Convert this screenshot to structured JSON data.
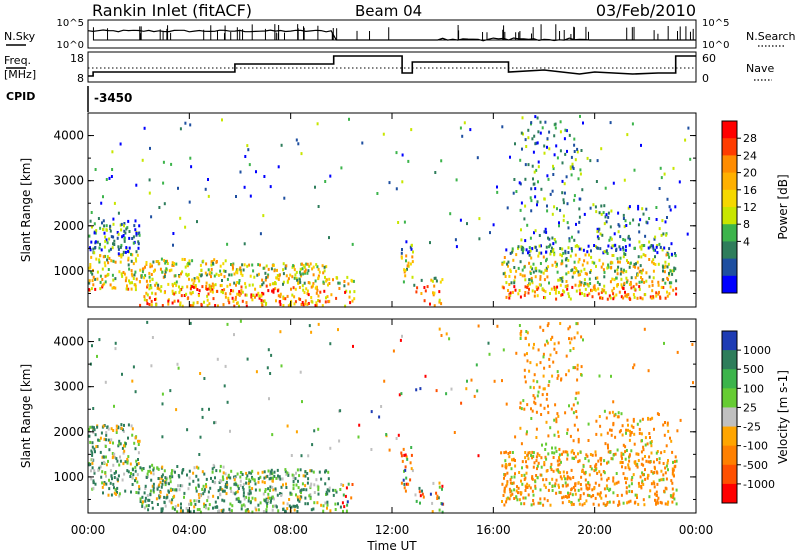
{
  "header": {
    "station": "Rankin Inlet (fitACF)",
    "beam": "Beam 04",
    "date": "03/Feb/2010"
  },
  "sky_panel": {
    "left_label": "N.Sky",
    "left_ticks": [
      "10^5",
      "10^0"
    ],
    "right_ticks": [
      "10^5",
      "10^0"
    ],
    "right_label": "N.Search"
  },
  "freq_panel": {
    "left_label_line1": "Freq.",
    "left_label_line2": "[MHz]",
    "left_ticks": [
      "18",
      "8"
    ],
    "right_ticks": [
      "60",
      "0"
    ],
    "right_label": "Nave"
  },
  "cpid": {
    "label": "CPID",
    "value": "-3450"
  },
  "axes": {
    "ylabel": "Slant Range [km]",
    "yticks": [
      "4000",
      "3000",
      "2000",
      "1000"
    ],
    "xticks": [
      "00:00",
      "04:00",
      "08:00",
      "12:00",
      "16:00",
      "20:00",
      "00:00"
    ],
    "xlabel": "Time UT"
  },
  "power_colorbar": {
    "label": "Power [dB]",
    "ticks": [
      "28",
      "24",
      "20",
      "16",
      "12",
      "8",
      "4"
    ],
    "colors": [
      "#ff0000",
      "#ff3c00",
      "#ff8c00",
      "#ffb000",
      "#f5d800",
      "#c8e600",
      "#3cb44b",
      "#2e7d5b",
      "#1e4fa0",
      "#0000ff"
    ]
  },
  "velocity_colorbar": {
    "label": "Velocity [m s-1]",
    "ticks": [
      "1000",
      "500",
      "100",
      "25",
      "-25",
      "-100",
      "-500",
      "-1000"
    ],
    "colors": [
      "#1e3cb4",
      "#2e7d5b",
      "#3cb44b",
      "#66cc33",
      "#c0c0c0",
      "#ffa500",
      "#ff8000",
      "#ff5000",
      "#ff0000"
    ]
  },
  "chart_data": {
    "type": "heatmap",
    "x_range_hours": [
      0,
      24
    ],
    "y_range_km": [
      200,
      4500
    ],
    "panels": [
      "Power [dB]",
      "Velocity [m s-1]"
    ],
    "cpid": -3450,
    "frequency_range_MHz": [
      8,
      18
    ],
    "nave_range": [
      0,
      60
    ]
  }
}
